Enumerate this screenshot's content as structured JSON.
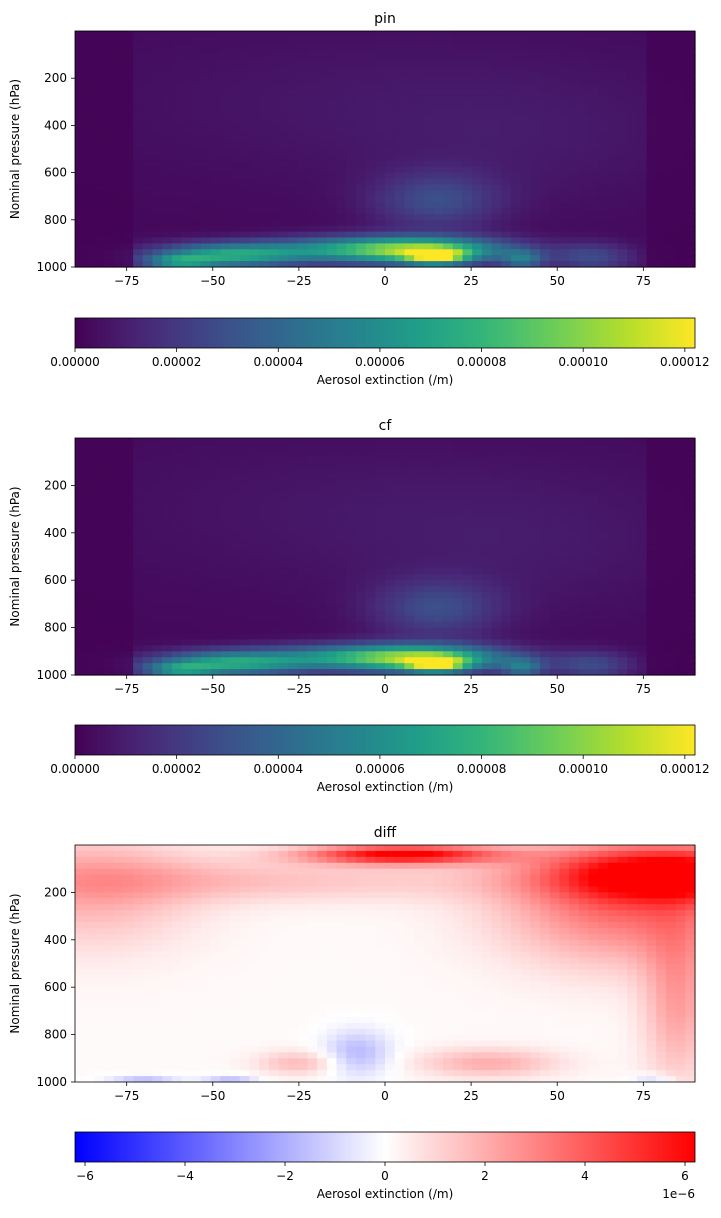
{
  "chart_data": [
    {
      "type": "heatmap",
      "title": "pin",
      "ylabel": "Nominal pressure (hPa)",
      "x_ticks": [
        -75,
        -50,
        -25,
        0,
        25,
        50,
        75
      ],
      "xlim": [
        -90,
        90
      ],
      "y_ticks": [
        200,
        400,
        600,
        800,
        1000
      ],
      "ylim": [
        1000,
        0
      ],
      "colormap": "viridis",
      "colorbar": {
        "label": "Aerosol extinction (/m)",
        "range": [
          0,
          0.000122
        ],
        "ticks": [
          "0.00000",
          "0.00002",
          "0.00004",
          "0.00006",
          "0.00008",
          "0.00010",
          "0.00012"
        ],
        "tick_values": [
          0,
          2e-05,
          4e-05,
          6e-05,
          8e-05,
          0.0001,
          0.00012
        ],
        "orientation": "horizontal"
      },
      "features": [
        {
          "lat": 15,
          "p": 950,
          "value": 0.00012
        },
        {
          "lat": 0,
          "p": 930,
          "value": 9e-05
        },
        {
          "lat": -50,
          "p": 950,
          "value": 7e-05
        },
        {
          "lat": 40,
          "p": 970,
          "value": 8e-05
        },
        {
          "lat": 15,
          "p": 700,
          "value": 3e-05
        }
      ]
    },
    {
      "type": "heatmap",
      "title": "cf",
      "ylabel": "Nominal pressure (hPa)",
      "x_ticks": [
        -75,
        -50,
        -25,
        0,
        25,
        50,
        75
      ],
      "xlim": [
        -90,
        90
      ],
      "y_ticks": [
        200,
        400,
        600,
        800,
        1000
      ],
      "ylim": [
        1000,
        0
      ],
      "colormap": "viridis",
      "colorbar": {
        "label": "Aerosol extinction (/m)",
        "range": [
          0,
          0.000122
        ],
        "ticks": [
          "0.00000",
          "0.00002",
          "0.00004",
          "0.00006",
          "0.00008",
          "0.00010",
          "0.00012"
        ],
        "tick_values": [
          0,
          2e-05,
          4e-05,
          6e-05,
          8e-05,
          0.0001,
          0.00012
        ],
        "orientation": "horizontal"
      },
      "features": [
        {
          "lat": 15,
          "p": 950,
          "value": 0.00012
        },
        {
          "lat": 0,
          "p": 930,
          "value": 9e-05
        },
        {
          "lat": -50,
          "p": 950,
          "value": 7e-05
        },
        {
          "lat": 40,
          "p": 970,
          "value": 8e-05
        },
        {
          "lat": 15,
          "p": 700,
          "value": 3e-05
        }
      ]
    },
    {
      "type": "heatmap",
      "title": "diff",
      "ylabel": "Nominal pressure (hPa)",
      "x_ticks": [
        -75,
        -50,
        -25,
        0,
        25,
        50,
        75
      ],
      "xlim": [
        -90,
        90
      ],
      "y_ticks": [
        200,
        400,
        600,
        800,
        1000
      ],
      "ylim": [
        1000,
        0
      ],
      "colormap": "bwr",
      "colorbar": {
        "label": "Aerosol extinction (/m)",
        "range": [
          -6.2,
          6.2
        ],
        "ticks": [
          "−6",
          "−4",
          "−2",
          "0",
          "2",
          "4",
          "6"
        ],
        "tick_values": [
          -6,
          -4,
          -2,
          0,
          2,
          4,
          6
        ],
        "offset_text": "1e−6",
        "orientation": "horizontal"
      },
      "features": [
        {
          "lat": 5,
          "p": 40,
          "value": 6.2
        },
        {
          "lat": 80,
          "p": 100,
          "value": 6.0
        },
        {
          "lat": -80,
          "p": 200,
          "value": 2.0
        },
        {
          "lat": -10,
          "p": 900,
          "value": -1.5
        },
        {
          "lat": 30,
          "p": 920,
          "value": 2.0
        },
        {
          "lat": 85,
          "p": 700,
          "value": 3.5
        },
        {
          "lat": -70,
          "p": 980,
          "value": -1.2
        },
        {
          "lat": -45,
          "p": 990,
          "value": -1.8
        },
        {
          "lat": 75,
          "p": 985,
          "value": -1.5
        }
      ]
    }
  ]
}
